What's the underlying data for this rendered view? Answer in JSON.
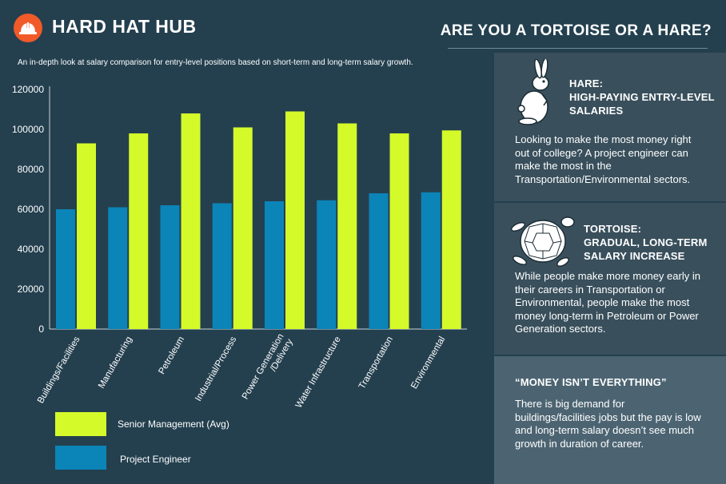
{
  "header": {
    "brand": "HARD HAT HUB",
    "headline": "ARE YOU A TORTOISE OR A HARE?",
    "logo_icon": "hard-hat-icon",
    "logo_color": "#f15a29"
  },
  "subtitle": "An in-depth look at salary comparison for entry-level positions based on short-term and long-term salary growth.",
  "chart_data": {
    "type": "bar",
    "categories": [
      "Buildings/Facilities",
      "Manufacturing",
      "Petroleum",
      "Industrial/Process",
      "Power Generation /Delivery",
      "Water Infrastructure",
      "Transportation",
      "Environmental"
    ],
    "series": [
      {
        "name": "Project Engineer",
        "color": "#0b84b8",
        "values": [
          60000,
          61000,
          62000,
          63000,
          64000,
          64500,
          68000,
          68500
        ]
      },
      {
        "name": "Senior Management (Avg)",
        "color": "#d4fa2a",
        "values": [
          93000,
          98000,
          108000,
          101000,
          109000,
          103000,
          98000,
          99500
        ]
      }
    ],
    "ylim": [
      0,
      120000
    ],
    "yticks": [
      "0",
      "20000",
      "40000",
      "60000",
      "80000",
      "100000",
      "120000"
    ],
    "grid": false,
    "legend": "bottom-left"
  },
  "legend": {
    "senior": "Senior Management (Avg)",
    "engineer": "Project Engineer"
  },
  "sidebar": {
    "hare": {
      "icon": "rabbit-icon",
      "title_line1": "HARE:",
      "title_line2": "HIGH-PAYING ENTRY-LEVEL",
      "title_line3": "SALARIES",
      "body": "Looking to make the most money right out of college? A project engineer can make the most in the Transportation/Environmental sectors."
    },
    "tortoise": {
      "icon": "tortoise-icon",
      "title_line1": "TORTOISE:",
      "title_line2": "GRADUAL, LONG-TERM",
      "title_line3": "SALARY INCREASE",
      "body": "While people make more money early in their careers in Transportation or Environmental, people make the most money long-term in Petroleum or Power Generation sectors."
    },
    "money": {
      "title": "“MONEY ISN’T EVERYTHING”",
      "body": "There is big demand for buildings/facilities jobs but the pay is low and long-term salary doesn’t see much growth in duration of career."
    }
  }
}
